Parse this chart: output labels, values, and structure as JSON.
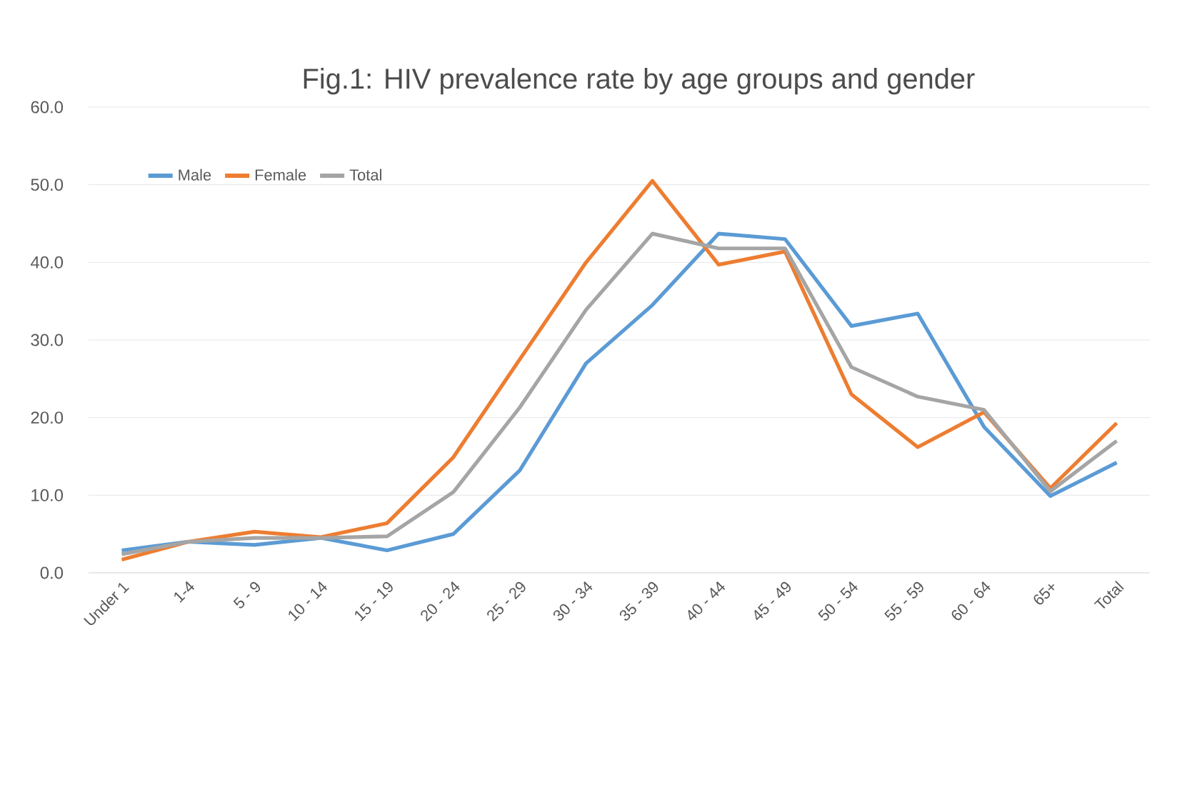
{
  "chart_data": {
    "type": "line",
    "title": "Fig.1: HIV prevalence rate by age groups and gender",
    "categories": [
      "Under 1",
      "1-4",
      "5 - 9",
      "10 - 14",
      "15 - 19",
      "20 - 24",
      "25 - 29",
      "30 - 34",
      "35 - 39",
      "40 - 44",
      "45 - 49",
      "50 - 54",
      "55 - 59",
      "60 - 64",
      "65+",
      "Total"
    ],
    "series": [
      {
        "name": "Male",
        "color": "#5b9bd5",
        "values": [
          2.9,
          4.0,
          3.6,
          4.5,
          2.9,
          5.0,
          13.2,
          27.0,
          34.5,
          43.7,
          43.0,
          31.8,
          33.4,
          18.8,
          9.9,
          14.2
        ]
      },
      {
        "name": "Female",
        "color": "#ed7d31",
        "values": [
          1.7,
          4.0,
          5.3,
          4.6,
          6.4,
          14.9,
          27.5,
          40.0,
          50.5,
          39.7,
          41.4,
          23.0,
          16.2,
          20.7,
          10.9,
          19.3
        ]
      },
      {
        "name": "Total",
        "color": "#a5a5a5",
        "values": [
          2.4,
          4.0,
          4.5,
          4.5,
          4.7,
          10.4,
          21.3,
          33.9,
          43.7,
          41.8,
          41.8,
          26.5,
          22.7,
          21.0,
          10.5,
          17.0
        ]
      }
    ],
    "ylim": [
      0,
      60
    ],
    "yticks": [
      {
        "value": 0,
        "label": "0.0"
      },
      {
        "value": 10,
        "label": "10.0"
      },
      {
        "value": 20,
        "label": "20.0"
      },
      {
        "value": 30,
        "label": "30.0"
      },
      {
        "value": 40,
        "label": "40.0"
      },
      {
        "value": 50,
        "label": "50.0"
      },
      {
        "value": 60,
        "label": "60.0"
      }
    ],
    "grid": "y",
    "legend": "top left",
    "marker": "none",
    "line_style": "solid"
  }
}
